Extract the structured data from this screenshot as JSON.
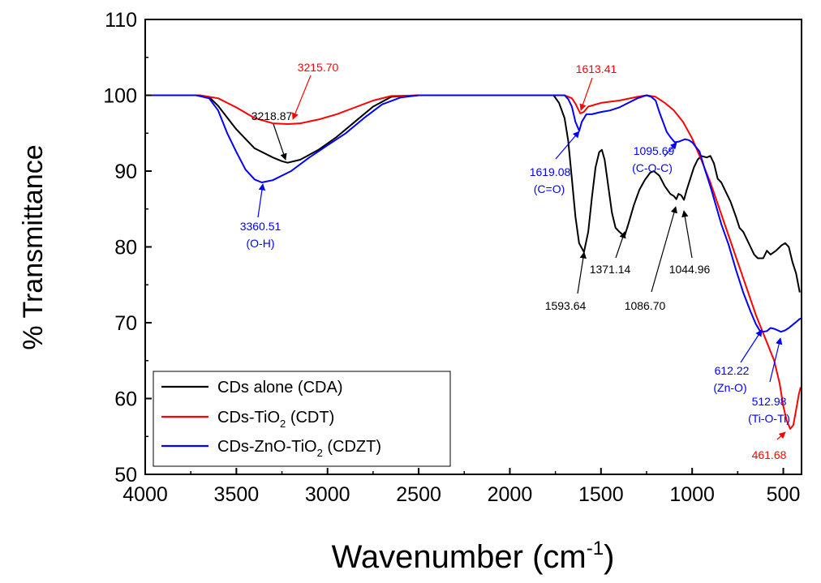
{
  "chart_data": {
    "type": "line",
    "xlabel": "Wavenumber (cm",
    "xlabel_sup": "-1",
    "xlabel_close": ")",
    "ylabel": "% Transmittance",
    "xlim": [
      4000,
      400
    ],
    "ylim": [
      50,
      110
    ],
    "x_ticks": [
      4000,
      3500,
      3000,
      2500,
      2000,
      1500,
      1000,
      500
    ],
    "y_ticks": [
      50,
      60,
      70,
      80,
      90,
      100,
      110
    ],
    "legend": {
      "position": "bottom-left",
      "entries": [
        {
          "text": "CDs alone (CDA)",
          "color": "#000000"
        },
        {
          "text": "CDs-TiO",
          "sub": "2",
          "tail": " (CDT)",
          "color": "#ff0000"
        },
        {
          "text": "CDs-ZnO-TiO",
          "sub": "2",
          "tail": " (CDZT)",
          "color": "#0000ff"
        }
      ]
    },
    "series": [
      {
        "name": "CDs alone (CDA)",
        "color": "#000000",
        "points": [
          [
            4000,
            100
          ],
          [
            3720,
            100
          ],
          [
            3650,
            99.8
          ],
          [
            3600,
            98.6
          ],
          [
            3500,
            95.5
          ],
          [
            3400,
            93
          ],
          [
            3300,
            91.8
          ],
          [
            3250,
            91.3
          ],
          [
            3218.87,
            91.1
          ],
          [
            3150,
            91.5
          ],
          [
            3050,
            92.8
          ],
          [
            2950,
            94.5
          ],
          [
            2850,
            96.5
          ],
          [
            2750,
            98.5
          ],
          [
            2650,
            99.8
          ],
          [
            2500,
            100
          ],
          [
            2000,
            100
          ],
          [
            1760,
            100
          ],
          [
            1730,
            99
          ],
          [
            1700,
            97
          ],
          [
            1680,
            94
          ],
          [
            1660,
            89
          ],
          [
            1640,
            84
          ],
          [
            1620,
            80.5
          ],
          [
            1593.64,
            79.3
          ],
          [
            1570,
            82
          ],
          [
            1550,
            86.5
          ],
          [
            1530,
            90.5
          ],
          [
            1510,
            92.5
          ],
          [
            1495,
            92.8
          ],
          [
            1480,
            91.5
          ],
          [
            1460,
            88
          ],
          [
            1440,
            84.5
          ],
          [
            1420,
            82.5
          ],
          [
            1400,
            82
          ],
          [
            1371.14,
            81.4
          ],
          [
            1350,
            83
          ],
          [
            1320,
            85.5
          ],
          [
            1290,
            87.5
          ],
          [
            1260,
            88.8
          ],
          [
            1230,
            89.8
          ],
          [
            1210,
            90
          ],
          [
            1180,
            89.4
          ],
          [
            1150,
            88
          ],
          [
            1120,
            87
          ],
          [
            1100,
            86.7
          ],
          [
            1086.7,
            86.3
          ],
          [
            1075,
            87
          ],
          [
            1060,
            86.8
          ],
          [
            1044.96,
            86.2
          ],
          [
            1030,
            87.5
          ],
          [
            1010,
            89
          ],
          [
            990,
            90.5
          ],
          [
            970,
            91.5
          ],
          [
            950,
            92
          ],
          [
            920,
            91.8
          ],
          [
            900,
            92
          ],
          [
            880,
            91
          ],
          [
            860,
            89
          ],
          [
            840,
            88.5
          ],
          [
            820,
            87.5
          ],
          [
            790,
            86
          ],
          [
            760,
            84
          ],
          [
            740,
            82.5
          ],
          [
            720,
            82
          ],
          [
            700,
            81
          ],
          [
            680,
            80
          ],
          [
            660,
            79
          ],
          [
            640,
            78.5
          ],
          [
            610,
            78.5
          ],
          [
            590,
            79.5
          ],
          [
            570,
            79
          ],
          [
            540,
            79.5
          ],
          [
            510,
            80.2
          ],
          [
            490,
            80.5
          ],
          [
            470,
            80
          ],
          [
            450,
            78
          ],
          [
            430,
            76.5
          ],
          [
            410,
            74
          ]
        ]
      },
      {
        "name": "CDs-TiO2 (CDT)",
        "color": "#ff0000",
        "points": [
          [
            4000,
            100
          ],
          [
            3700,
            100
          ],
          [
            3600,
            99.6
          ],
          [
            3500,
            98.4
          ],
          [
            3400,
            97
          ],
          [
            3300,
            96.3
          ],
          [
            3215.7,
            96.2
          ],
          [
            3150,
            96.3
          ],
          [
            3050,
            96.8
          ],
          [
            2950,
            97.5
          ],
          [
            2850,
            98.4
          ],
          [
            2750,
            99.3
          ],
          [
            2650,
            99.9
          ],
          [
            2500,
            100
          ],
          [
            2000,
            100
          ],
          [
            1700,
            100
          ],
          [
            1660,
            99.6
          ],
          [
            1640,
            98.9
          ],
          [
            1613.41,
            97.6
          ],
          [
            1595,
            97.8
          ],
          [
            1570,
            98.5
          ],
          [
            1500,
            99
          ],
          [
            1400,
            99.3
          ],
          [
            1300,
            99.8
          ],
          [
            1250,
            100
          ],
          [
            1200,
            99.8
          ],
          [
            1150,
            99
          ],
          [
            1100,
            98
          ],
          [
            1050,
            96.5
          ],
          [
            1000,
            94.3
          ],
          [
            950,
            91.5
          ],
          [
            900,
            88.5
          ],
          [
            850,
            85
          ],
          [
            800,
            81.5
          ],
          [
            750,
            78
          ],
          [
            700,
            74.5
          ],
          [
            650,
            71
          ],
          [
            600,
            68
          ],
          [
            550,
            65
          ],
          [
            520,
            62
          ],
          [
            500,
            59
          ],
          [
            480,
            57
          ],
          [
            461.68,
            56
          ],
          [
            445,
            56.5
          ],
          [
            430,
            58.5
          ],
          [
            415,
            60.5
          ],
          [
            405,
            61.5
          ]
        ]
      },
      {
        "name": "CDs-ZnO-TiO2 (CDZT)",
        "color": "#0000ff",
        "points": [
          [
            4000,
            100
          ],
          [
            3720,
            100
          ],
          [
            3650,
            99.6
          ],
          [
            3600,
            98
          ],
          [
            3550,
            95
          ],
          [
            3500,
            92.5
          ],
          [
            3450,
            90.2
          ],
          [
            3400,
            88.9
          ],
          [
            3360.51,
            88.5
          ],
          [
            3300,
            88.8
          ],
          [
            3200,
            90
          ],
          [
            3100,
            91.8
          ],
          [
            3000,
            93.4
          ],
          [
            2900,
            95
          ],
          [
            2800,
            97
          ],
          [
            2700,
            98.8
          ],
          [
            2600,
            99.7
          ],
          [
            2500,
            100
          ],
          [
            2000,
            100
          ],
          [
            1700,
            100
          ],
          [
            1680,
            99.5
          ],
          [
            1660,
            98.5
          ],
          [
            1640,
            96.5
          ],
          [
            1619.08,
            95.3
          ],
          [
            1605,
            96.5
          ],
          [
            1580,
            97.5
          ],
          [
            1550,
            97.5
          ],
          [
            1500,
            97.8
          ],
          [
            1450,
            98
          ],
          [
            1400,
            98.4
          ],
          [
            1350,
            99
          ],
          [
            1300,
            99.6
          ],
          [
            1250,
            100
          ],
          [
            1225,
            99.8
          ],
          [
            1200,
            99.3
          ],
          [
            1180,
            97.8
          ],
          [
            1160,
            96.5
          ],
          [
            1140,
            95.2
          ],
          [
            1120,
            94.5
          ],
          [
            1095.69,
            93.8
          ],
          [
            1070,
            93.9
          ],
          [
            1040,
            94.2
          ],
          [
            1020,
            94.1
          ],
          [
            1000,
            93.8
          ],
          [
            960,
            92.6
          ],
          [
            930,
            90.2
          ],
          [
            900,
            88
          ],
          [
            870,
            85.5
          ],
          [
            840,
            83
          ],
          [
            800,
            80.3
          ],
          [
            760,
            77
          ],
          [
            720,
            74
          ],
          [
            680,
            71.5
          ],
          [
            650,
            69.8
          ],
          [
            630,
            69
          ],
          [
            612.22,
            68.8
          ],
          [
            590,
            68.9
          ],
          [
            570,
            69.3
          ],
          [
            550,
            69.2
          ],
          [
            530,
            69
          ],
          [
            512.98,
            68.8
          ],
          [
            490,
            69
          ],
          [
            470,
            69.3
          ],
          [
            450,
            69.7
          ],
          [
            430,
            70.1
          ],
          [
            410,
            70.5
          ],
          [
            400,
            70.6
          ]
        ]
      }
    ],
    "annotations": [
      {
        "text": "3215.70",
        "color": "#ff0000"
      },
      {
        "text": "3218.87",
        "color": "#000000"
      },
      {
        "text": "3360.51",
        "color": "#0000ff"
      },
      {
        "text": "(O-H)",
        "color": "#0000ff"
      },
      {
        "text": "1613.41",
        "color": "#ff0000"
      },
      {
        "text": "1619.08",
        "color": "#0000ff"
      },
      {
        "text": "(C=O)",
        "color": "#0000ff"
      },
      {
        "text": "1095.69",
        "color": "#0000ff"
      },
      {
        "text": "(C-O-C)",
        "color": "#0000ff"
      },
      {
        "text": "1593.64",
        "color": "#000000"
      },
      {
        "text": "1371.14",
        "color": "#000000"
      },
      {
        "text": "1086.70",
        "color": "#000000"
      },
      {
        "text": "1044.96",
        "color": "#000000"
      },
      {
        "text": "612.22",
        "color": "#0000ff"
      },
      {
        "text": "(Zn-O)",
        "color": "#0000ff"
      },
      {
        "text": "512.98",
        "color": "#0000ff"
      },
      {
        "text": "(Ti-O-Ti)",
        "color": "#0000ff"
      },
      {
        "text": "461.68",
        "color": "#ff0000"
      }
    ]
  }
}
